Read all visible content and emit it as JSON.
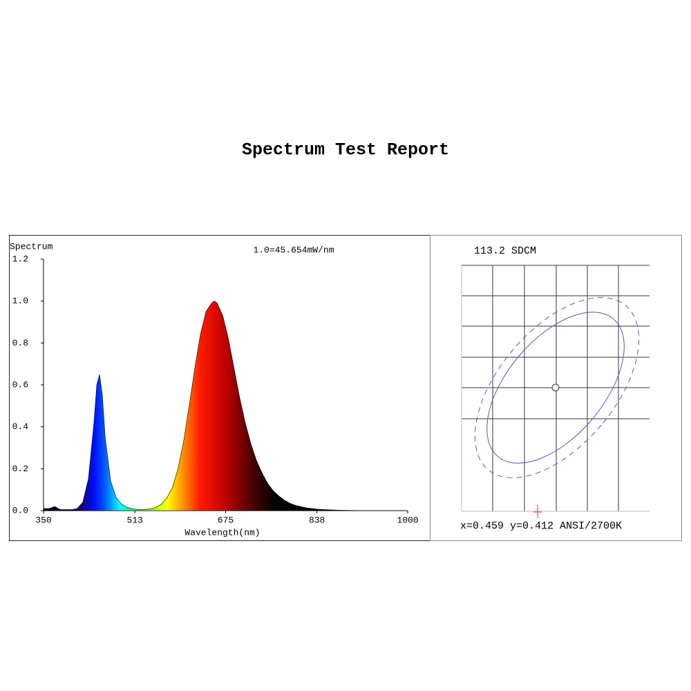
{
  "title": "Spectrum Test Report",
  "chart_data": {
    "type": "area",
    "y_label": "Spectrum",
    "annotation": "1.0=45.654mW/nm",
    "x_label": "Wavelength(nm)",
    "xlim": [
      350,
      1000
    ],
    "xticks": [
      350,
      513,
      675,
      838,
      1000
    ],
    "ylim": [
      0,
      1.2
    ],
    "yticks": [
      {
        "value": 0,
        "label": "0.0"
      },
      0.2,
      0.4,
      0.6,
      0.8,
      {
        "value": 1,
        "label": "1.0"
      },
      1.2
    ],
    "x": [
      350,
      360,
      370,
      380,
      390,
      400,
      410,
      420,
      430,
      440,
      445,
      450,
      455,
      460,
      470,
      480,
      490,
      500,
      510,
      520,
      530,
      540,
      550,
      560,
      570,
      580,
      590,
      600,
      610,
      620,
      630,
      640,
      650,
      655,
      660,
      670,
      680,
      690,
      700,
      710,
      720,
      730,
      740,
      750,
      760,
      770,
      780,
      790,
      800,
      820,
      840,
      860,
      880,
      900,
      950,
      1000
    ],
    "values": [
      0.01,
      0.01,
      0.02,
      0.005,
      0.005,
      0.005,
      0.01,
      0.04,
      0.15,
      0.42,
      0.6,
      0.65,
      0.55,
      0.35,
      0.14,
      0.06,
      0.03,
      0.015,
      0.008,
      0.005,
      0.005,
      0.008,
      0.015,
      0.03,
      0.06,
      0.11,
      0.2,
      0.33,
      0.5,
      0.68,
      0.84,
      0.95,
      0.99,
      1.0,
      0.99,
      0.93,
      0.82,
      0.68,
      0.54,
      0.42,
      0.32,
      0.24,
      0.18,
      0.13,
      0.095,
      0.07,
      0.05,
      0.035,
      0.025,
      0.013,
      0.007,
      0.004,
      0.002,
      0.001,
      0,
      0
    ]
  },
  "sdcm_panel": {
    "label": "113.2 SDCM",
    "coordinates": "x=0.459 y=0.412 ANSI/2700K"
  }
}
